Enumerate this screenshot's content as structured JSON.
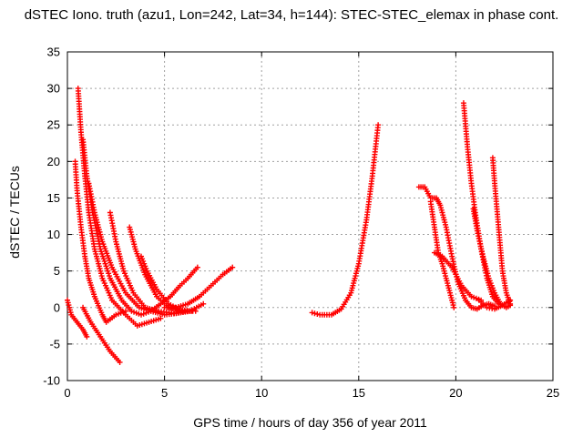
{
  "chart_data": {
    "type": "scatter",
    "title": "dSTEC Iono. truth (azu1, Lon=242, Lat=34, h=144): STEC-STEC_elemax in phase cont.",
    "xlabel": "GPS time / hours of day 356 of year 2011",
    "ylabel": "dSTEC  / TECUs",
    "xlim": [
      0,
      25
    ],
    "ylim": [
      -10,
      35
    ],
    "xticks": [
      "0",
      "5",
      "10",
      "15",
      "20",
      "25"
    ],
    "yticks": [
      "-10",
      "-5",
      "0",
      "5",
      "10",
      "15",
      "20",
      "25",
      "30",
      "35"
    ],
    "grid": true,
    "marker": "+",
    "color": "#ff0000",
    "series": [
      {
        "x": [
          0.0,
          0.2,
          0.5,
          0.8,
          1.0
        ],
        "y": [
          1.0,
          -1.0,
          -2.0,
          -3.0,
          -4.0
        ]
      },
      {
        "x": [
          0.8,
          1.2,
          1.7,
          2.2,
          2.7
        ],
        "y": [
          0.0,
          -2.0,
          -4.0,
          -6.0,
          -7.5
        ]
      },
      {
        "x": [
          0.4,
          0.5,
          0.7,
          0.9,
          1.1,
          1.4,
          1.8,
          2.0,
          2.5,
          3.0
        ],
        "y": [
          20.0,
          16.0,
          11.0,
          7.0,
          4.0,
          1.5,
          -1.0,
          -2.0,
          -1.0,
          -0.5
        ]
      },
      {
        "x": [
          0.55,
          0.7,
          0.9,
          1.1,
          1.4,
          1.8,
          2.3,
          3.0,
          3.6,
          4.2,
          4.8
        ],
        "y": [
          30.0,
          24.0,
          18.0,
          13.0,
          8.0,
          4.0,
          1.0,
          -1.0,
          -2.5,
          -2.0,
          -1.5
        ]
      },
      {
        "x": [
          0.8,
          1.0,
          1.3,
          1.7,
          2.2,
          2.8,
          3.3,
          3.8,
          4.3,
          4.8,
          5.3,
          5.8,
          6.2,
          6.7
        ],
        "y": [
          23.0,
          18.0,
          13.0,
          8.0,
          4.0,
          1.0,
          -0.5,
          -1.0,
          -0.5,
          0.5,
          1.5,
          3.0,
          4.0,
          5.5
        ]
      },
      {
        "x": [
          1.1,
          1.4,
          1.8,
          2.3,
          3.0,
          3.7,
          4.3,
          5.0,
          5.6,
          6.3,
          7.0
        ],
        "y": [
          17.0,
          13.0,
          9.0,
          5.5,
          2.0,
          0.0,
          -0.5,
          -1.0,
          -0.8,
          -0.5,
          0.5
        ]
      },
      {
        "x": [
          2.2,
          2.5,
          2.9,
          3.4,
          4.0,
          4.7,
          5.5,
          6.2
        ],
        "y": [
          13.0,
          9.0,
          5.0,
          2.0,
          0.0,
          -0.5,
          -0.8,
          -0.5
        ]
      },
      {
        "x": [
          3.2,
          3.5,
          4.0,
          4.6,
          5.2,
          5.9,
          6.6
        ],
        "y": [
          11.0,
          8.0,
          4.5,
          1.5,
          0.0,
          -0.5,
          -0.5
        ]
      },
      {
        "x": [
          3.8,
          4.1,
          4.6,
          5.2,
          5.8,
          6.4
        ],
        "y": [
          7.0,
          5.0,
          2.5,
          0.5,
          -0.3,
          -0.5
        ]
      },
      {
        "x": [
          5.0,
          5.6,
          6.2,
          6.8,
          7.4,
          8.0,
          8.5
        ],
        "y": [
          0.0,
          0.0,
          0.5,
          1.5,
          3.0,
          4.5,
          5.5
        ]
      },
      {
        "x": [
          12.6,
          13.0,
          13.6,
          14.1,
          14.6,
          15.0,
          15.4,
          15.7,
          16.0
        ],
        "y": [
          -0.7,
          -1.0,
          -1.0,
          -0.2,
          2.0,
          6.0,
          12.0,
          18.0,
          25.0
        ]
      },
      {
        "x": [
          18.1,
          18.4,
          18.7,
          19.0,
          19.2,
          19.5,
          19.8,
          20.1,
          20.5,
          20.8,
          21.1,
          21.4,
          21.7,
          22.0
        ],
        "y": [
          16.5,
          16.5,
          15.0,
          15.0,
          14.0,
          11.0,
          7.0,
          3.5,
          1.0,
          0.0,
          -0.2,
          0.3,
          0.5,
          0.2
        ]
      },
      {
        "x": [
          18.7,
          18.9,
          19.1,
          19.3,
          19.6,
          19.9
        ],
        "y": [
          14.5,
          11.0,
          7.5,
          6.0,
          3.0,
          0.0
        ]
      },
      {
        "x": [
          18.9,
          19.3,
          19.8,
          20.3,
          20.8,
          21.3
        ],
        "y": [
          7.5,
          7.0,
          5.5,
          3.0,
          1.5,
          1.0
        ]
      },
      {
        "x": [
          20.4,
          20.6,
          20.8,
          21.0,
          21.3,
          21.6,
          21.9,
          22.2,
          22.5
        ],
        "y": [
          28.0,
          22.0,
          17.0,
          13.0,
          8.0,
          4.0,
          1.5,
          0.5,
          0.2
        ]
      },
      {
        "x": [
          20.9,
          21.1,
          21.4,
          21.7,
          22.0,
          22.3,
          22.6,
          22.8
        ],
        "y": [
          13.5,
          10.5,
          7.0,
          4.0,
          2.0,
          0.5,
          0.0,
          0.3
        ]
      },
      {
        "x": [
          21.9,
          22.0,
          22.2,
          22.4,
          22.6,
          22.8
        ],
        "y": [
          20.5,
          17.0,
          11.0,
          5.0,
          2.0,
          0.5
        ]
      },
      {
        "x": [
          21.2,
          21.6,
          22.0,
          22.4,
          22.8
        ],
        "y": [
          1.0,
          0.0,
          -0.2,
          0.3,
          1.0
        ]
      }
    ]
  }
}
